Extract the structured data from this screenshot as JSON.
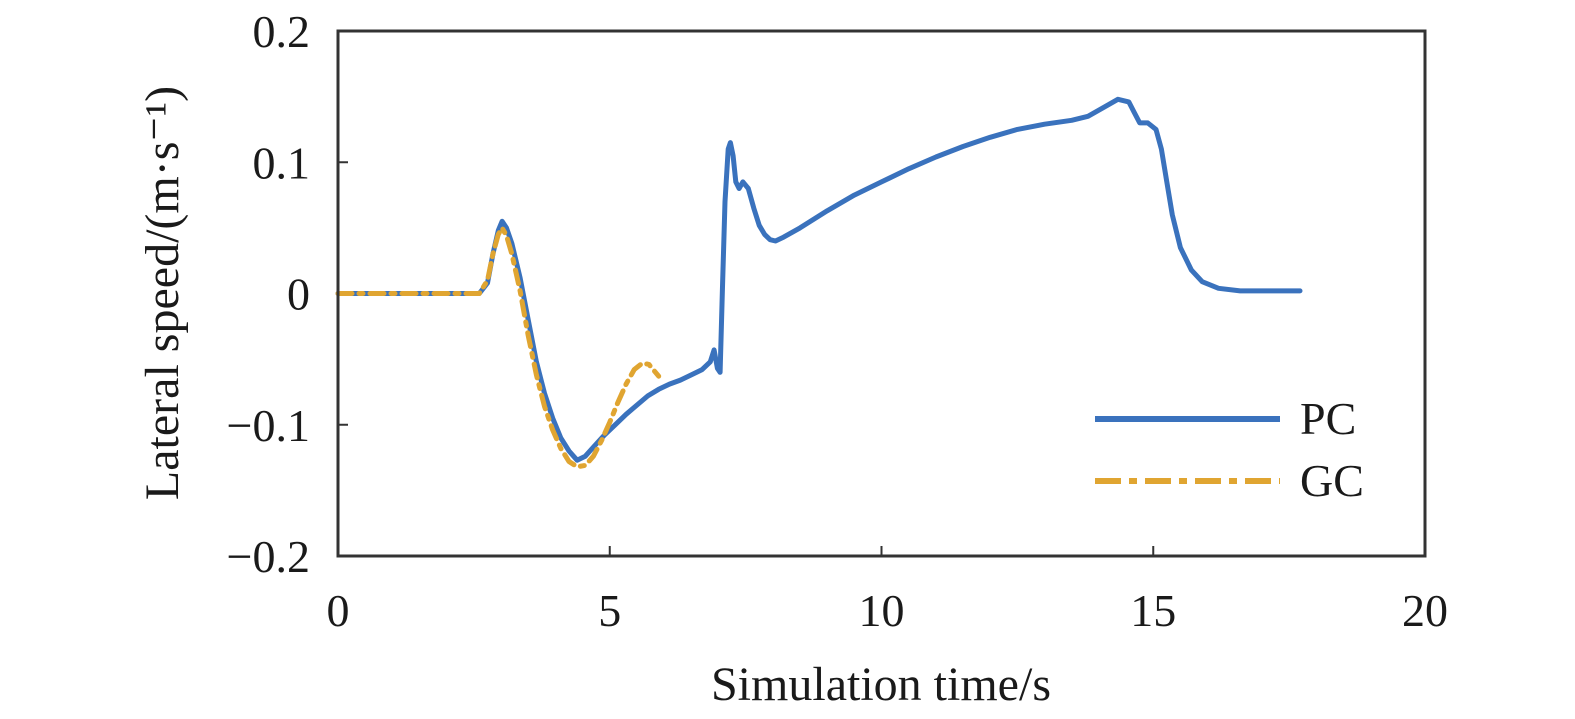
{
  "chart_data": {
    "type": "line",
    "title": "",
    "xlabel": "Simulation time/s",
    "ylabel": "Lateral speed/(m·s⁻¹)",
    "xlim": [
      0,
      20
    ],
    "ylim": [
      -0.2,
      0.2
    ],
    "x_ticks": [
      0,
      5,
      10,
      15,
      20
    ],
    "x_tick_labels": [
      "0",
      "5",
      "10",
      "15",
      "20"
    ],
    "y_ticks": [
      -0.2,
      -0.1,
      0,
      0.1,
      0.2
    ],
    "y_tick_labels": [
      "−0.2",
      "−0.1",
      "0",
      "0.1",
      "0.2"
    ],
    "grid": false,
    "legend_position": "bottom-right",
    "series": [
      {
        "name": "PC",
        "color": "#3a72bd",
        "style": "solid",
        "points": [
          [
            0,
            0
          ],
          [
            2.6,
            0
          ],
          [
            2.75,
            0.008
          ],
          [
            2.85,
            0.03
          ],
          [
            2.95,
            0.048
          ],
          [
            3.02,
            0.055
          ],
          [
            3.1,
            0.05
          ],
          [
            3.2,
            0.038
          ],
          [
            3.35,
            0.012
          ],
          [
            3.5,
            -0.02
          ],
          [
            3.65,
            -0.052
          ],
          [
            3.8,
            -0.076
          ],
          [
            3.95,
            -0.095
          ],
          [
            4.1,
            -0.11
          ],
          [
            4.25,
            -0.12
          ],
          [
            4.4,
            -0.127
          ],
          [
            4.55,
            -0.124
          ],
          [
            4.7,
            -0.117
          ],
          [
            4.9,
            -0.108
          ],
          [
            5.1,
            -0.1
          ],
          [
            5.3,
            -0.092
          ],
          [
            5.5,
            -0.085
          ],
          [
            5.7,
            -0.078
          ],
          [
            5.9,
            -0.073
          ],
          [
            6.1,
            -0.069
          ],
          [
            6.3,
            -0.066
          ],
          [
            6.5,
            -0.062
          ],
          [
            6.7,
            -0.058
          ],
          [
            6.85,
            -0.052
          ],
          [
            6.92,
            -0.043
          ],
          [
            6.98,
            -0.057
          ],
          [
            7.03,
            -0.06
          ],
          [
            7.07,
            0.0
          ],
          [
            7.12,
            0.07
          ],
          [
            7.18,
            0.11
          ],
          [
            7.22,
            0.115
          ],
          [
            7.27,
            0.105
          ],
          [
            7.32,
            0.085
          ],
          [
            7.38,
            0.08
          ],
          [
            7.45,
            0.085
          ],
          [
            7.55,
            0.08
          ],
          [
            7.65,
            0.065
          ],
          [
            7.75,
            0.052
          ],
          [
            7.85,
            0.045
          ],
          [
            7.95,
            0.041
          ],
          [
            8.05,
            0.04
          ],
          [
            8.2,
            0.043
          ],
          [
            8.5,
            0.05
          ],
          [
            9.0,
            0.063
          ],
          [
            9.5,
            0.075
          ],
          [
            10.0,
            0.085
          ],
          [
            10.5,
            0.095
          ],
          [
            11.0,
            0.104
          ],
          [
            11.5,
            0.112
          ],
          [
            12.0,
            0.119
          ],
          [
            12.5,
            0.125
          ],
          [
            13.0,
            0.129
          ],
          [
            13.5,
            0.132
          ],
          [
            13.8,
            0.135
          ],
          [
            14.1,
            0.142
          ],
          [
            14.35,
            0.148
          ],
          [
            14.55,
            0.146
          ],
          [
            14.65,
            0.138
          ],
          [
            14.75,
            0.13
          ],
          [
            14.9,
            0.13
          ],
          [
            15.05,
            0.125
          ],
          [
            15.15,
            0.11
          ],
          [
            15.25,
            0.085
          ],
          [
            15.35,
            0.06
          ],
          [
            15.5,
            0.035
          ],
          [
            15.7,
            0.018
          ],
          [
            15.9,
            0.009
          ],
          [
            16.2,
            0.004
          ],
          [
            16.6,
            0.002
          ],
          [
            17.0,
            0.002
          ],
          [
            17.7,
            0.002
          ]
        ]
      },
      {
        "name": "GC",
        "color": "#e0a531",
        "style": "dashdot",
        "points": [
          [
            0,
            0
          ],
          [
            2.6,
            0
          ],
          [
            2.75,
            0.01
          ],
          [
            2.85,
            0.03
          ],
          [
            2.95,
            0.045
          ],
          [
            3.02,
            0.05
          ],
          [
            3.1,
            0.044
          ],
          [
            3.2,
            0.03
          ],
          [
            3.35,
            0.002
          ],
          [
            3.5,
            -0.032
          ],
          [
            3.65,
            -0.062
          ],
          [
            3.8,
            -0.086
          ],
          [
            3.95,
            -0.104
          ],
          [
            4.1,
            -0.118
          ],
          [
            4.25,
            -0.128
          ],
          [
            4.4,
            -0.132
          ],
          [
            4.55,
            -0.131
          ],
          [
            4.7,
            -0.124
          ],
          [
            4.85,
            -0.112
          ],
          [
            5.0,
            -0.098
          ],
          [
            5.15,
            -0.083
          ],
          [
            5.3,
            -0.069
          ],
          [
            5.45,
            -0.058
          ],
          [
            5.6,
            -0.053
          ],
          [
            5.72,
            -0.054
          ],
          [
            5.82,
            -0.059
          ],
          [
            5.9,
            -0.063
          ]
        ]
      }
    ]
  }
}
